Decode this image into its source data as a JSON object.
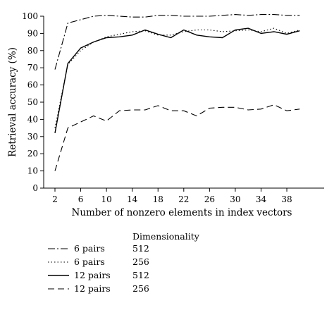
{
  "chart_data": {
    "type": "line",
    "xlabel": "Number of nonzero elements in index vectors",
    "ylabel": "Retrieval accuracy (%)",
    "xlim": [
      2,
      40
    ],
    "ylim": [
      0,
      100
    ],
    "x_ticks": [
      "2",
      "6",
      "10",
      "14",
      "18",
      "22",
      "26",
      "30",
      "34",
      "38"
    ],
    "y_ticks": [
      "0",
      "10",
      "20",
      "30",
      "40",
      "50",
      "60",
      "70",
      "80",
      "90",
      "100"
    ],
    "x": [
      2,
      4,
      6,
      8,
      10,
      12,
      14,
      16,
      18,
      20,
      22,
      24,
      26,
      28,
      30,
      32,
      34,
      36,
      38,
      40
    ],
    "legend_title": "Dimensionality",
    "series": [
      {
        "name": "6 pairs",
        "dimensionality": "512",
        "dash": "dashdot",
        "values": [
          69,
          96,
          98,
          100,
          100.5,
          100,
          99.5,
          99.5,
          100.5,
          100.5,
          100,
          100,
          100,
          100.5,
          101,
          100.5,
          101,
          101,
          100.5,
          100.5
        ]
      },
      {
        "name": "6 pairs",
        "dimensionality": "256",
        "dash": "dotted",
        "values": [
          35,
          72,
          80,
          85,
          88,
          89.5,
          91,
          91.5,
          89,
          89,
          91,
          92,
          92,
          91,
          91.5,
          92,
          91,
          93,
          90,
          92
        ]
      },
      {
        "name": "12 pairs",
        "dimensionality": "512",
        "dash": "solid",
        "values": [
          32,
          72.5,
          81.5,
          85,
          87.5,
          88,
          89,
          92,
          89.5,
          87.5,
          92,
          89,
          88,
          87.5,
          92,
          93,
          90,
          91,
          89.5,
          91.5
        ]
      },
      {
        "name": "12 pairs",
        "dimensionality": "256",
        "dash": "dashed",
        "values": [
          10,
          35,
          38.5,
          42,
          39,
          45,
          45.5,
          45.5,
          48,
          45,
          45,
          42,
          46.5,
          47,
          47,
          45.5,
          46,
          48.5,
          45,
          46
        ]
      }
    ]
  }
}
